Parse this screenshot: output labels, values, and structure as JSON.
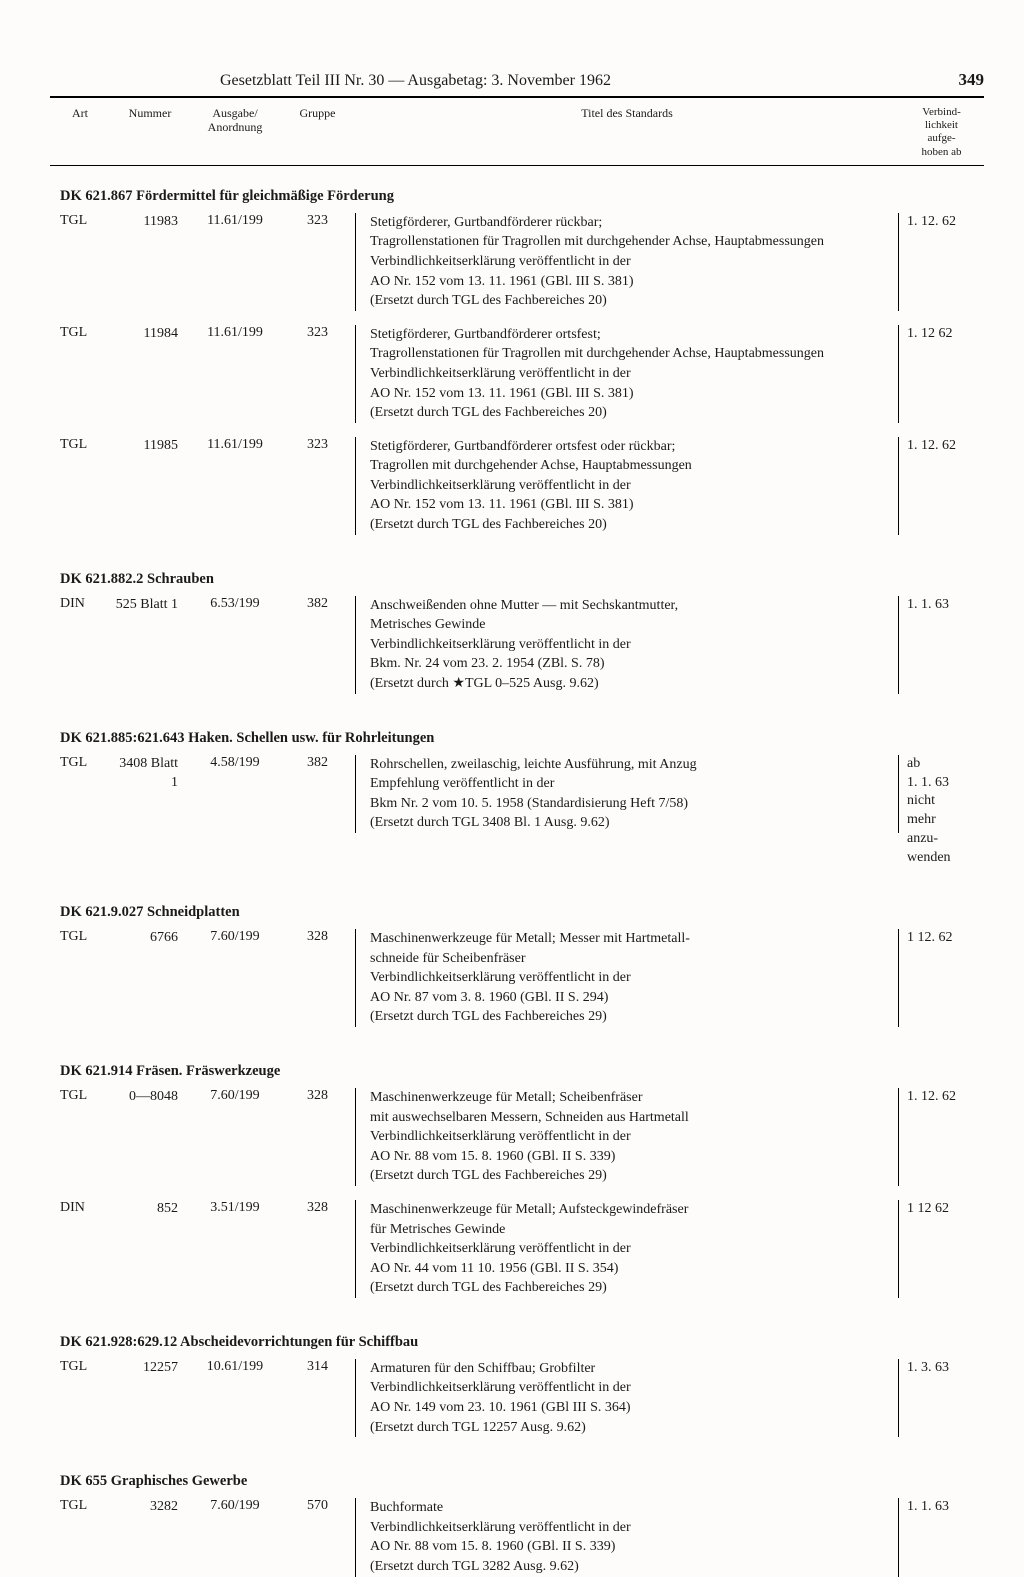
{
  "header": {
    "title": "Gesetzblatt Teil III Nr. 30 — Ausgabetag: 3. November 1962",
    "page_number": "349"
  },
  "columns": {
    "art": "Art",
    "nummer": "Nummer",
    "ausgabe": "Ausgabe/\nAnordnung",
    "gruppe": "Gruppe",
    "titel": "Titel des Standards",
    "verbind": "Verbind-\nlichkeit\naufge-\nhoben ab"
  },
  "sections": [
    {
      "heading": "DK 621.867 Fördermittel für gleichmäßige Förderung",
      "rows": [
        {
          "art": "TGL",
          "nummer": "11983",
          "ausgabe": "11.61/199",
          "gruppe": "323",
          "titel": "Stetigförderer, Gurtbandförderer rückbar;\nTragrollenstationen für Tragrollen mit durchgehender Achse, Hauptabmessungen\nVerbindlichkeitserklärung veröffentlicht in der\nAO Nr. 152 vom 13. 11. 1961 (GBl. III S. 381)\n(Ersetzt durch TGL des Fachbereiches 20)",
          "verbind": "1. 12. 62"
        },
        {
          "art": "TGL",
          "nummer": "11984",
          "ausgabe": "11.61/199",
          "gruppe": "323",
          "titel": "Stetigförderer, Gurtbandförderer ortsfest;\nTragrollenstationen für Tragrollen mit durchgehender Achse, Hauptabmessungen\nVerbindlichkeitserklärung veröffentlicht in der\nAO Nr. 152 vom 13. 11. 1961 (GBl. III S. 381)\n(Ersetzt durch TGL des Fachbereiches 20)",
          "verbind": "1. 12  62"
        },
        {
          "art": "TGL",
          "nummer": "11985",
          "ausgabe": "11.61/199",
          "gruppe": "323",
          "titel": "Stetigförderer, Gurtbandförderer ortsfest oder rückbar;\nTragrollen mit durchgehender Achse, Hauptabmessungen\nVerbindlichkeitserklärung veröffentlicht in der\nAO Nr. 152 vom 13. 11. 1961 (GBl. III S. 381)\n(Ersetzt durch TGL des Fachbereiches 20)",
          "verbind": "1. 12. 62"
        }
      ]
    },
    {
      "heading": "DK 621.882.2 Schrauben",
      "rows": [
        {
          "art": "DIN",
          "nummer": "525\nBlatt 1",
          "ausgabe": "6.53/199",
          "gruppe": "382",
          "titel": "Anschweißenden ohne Mutter — mit Sechskantmutter,\nMetrisches Gewinde\nVerbindlichkeitserklärung veröffentlicht in der\nBkm. Nr. 24 vom 23. 2. 1954 (ZBl. S. 78)\n(Ersetzt durch ★TGL 0–525 Ausg. 9.62)",
          "verbind": "1. 1. 63"
        }
      ]
    },
    {
      "heading": "DK 621.885:621.643 Haken. Schellen usw. für Rohrleitungen",
      "rows": [
        {
          "art": "TGL",
          "nummer": "3408\nBlatt 1",
          "ausgabe": "4.58/199",
          "gruppe": "382",
          "titel": "Rohrschellen, zweilaschig, leichte Ausführung, mit Anzug\nEmpfehlung veröffentlicht in der\nBkm Nr. 2 vom 10. 5. 1958   (Standardisierung Heft 7/58)\n(Ersetzt durch TGL 3408 Bl. 1 Ausg. 9.62)",
          "verbind": "ab\n1. 1. 63\nnicht\nmehr\nanzu-\nwenden"
        }
      ]
    },
    {
      "heading": "DK 621.9.027 Schneidplatten",
      "rows": [
        {
          "art": "TGL",
          "nummer": "6766",
          "ausgabe": "7.60/199",
          "gruppe": "328",
          "titel": "Maschinenwerkzeuge für Metall; Messer mit Hartmetall-\nschneide für Scheibenfräser\nVerbindlichkeitserklärung veröffentlicht in der\nAO Nr. 87 vom 3. 8. 1960 (GBl. II S. 294)\n(Ersetzt durch TGL des Fachbereiches 29)",
          "verbind": "1  12. 62"
        }
      ]
    },
    {
      "heading": "DK 621.914 Fräsen. Fräswerkzeuge",
      "rows": [
        {
          "art": "TGL",
          "nummer": "0—8048",
          "ausgabe": "7.60/199",
          "gruppe": "328",
          "titel": "Maschinenwerkzeuge für Metall; Scheibenfräser\nmit auswechselbaren Messern, Schneiden aus Hartmetall\nVerbindlichkeitserklärung veröffentlicht in der\nAO Nr. 88 vom 15. 8. 1960 (GBl. II S. 339)\n(Ersetzt durch TGL des Fachbereiches 29)",
          "verbind": "1. 12. 62"
        },
        {
          "art": "DIN",
          "nummer": "852",
          "ausgabe": "3.51/199",
          "gruppe": "328",
          "titel": "Maschinenwerkzeuge für Metall; Aufsteckgewindefräser\nfür Metrisches Gewinde\nVerbindlichkeitserklärung veröffentlicht in der\nAO Nr. 44 vom 11  10. 1956 (GBl. II S. 354)\n(Ersetzt durch TGL des Fachbereiches 29)",
          "verbind": "1  12  62"
        }
      ]
    },
    {
      "heading": "DK 621.928:629.12 Abscheidevorrichtungen für Schiffbau",
      "rows": [
        {
          "art": "TGL",
          "nummer": "12257",
          "ausgabe": "10.61/199",
          "gruppe": "314",
          "titel": "Armaturen für den Schiffbau; Grobfilter\nVerbindlichkeitserklärung veröffentlicht in der\nAO Nr. 149 vom 23. 10. 1961 (GBl  III S. 364)\n(Ersetzt durch TGL 12257 Ausg. 9.62)",
          "verbind": "1. 3. 63"
        }
      ]
    },
    {
      "heading": "DK 655 Graphisches Gewerbe",
      "rows": [
        {
          "art": "TGL",
          "nummer": "3282",
          "ausgabe": "7.60/199",
          "gruppe": "570",
          "titel": "Buchformate\nVerbindlichkeitserklärung veröffentlicht in der\nAO Nr. 88 vom 15. 8. 1960 (GBl. II S. 339)\n(Ersetzt durch TGL 3282 Ausg. 9.62)",
          "verbind": "1. 1. 63"
        }
      ]
    }
  ]
}
